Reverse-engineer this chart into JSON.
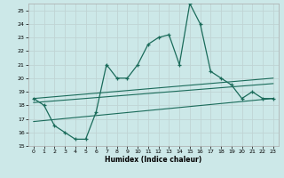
{
  "xlabel": "Humidex (Indice chaleur)",
  "xlim": [
    -0.5,
    23.5
  ],
  "ylim": [
    15,
    25.5
  ],
  "yticks": [
    15,
    16,
    17,
    18,
    19,
    20,
    21,
    22,
    23,
    24,
    25
  ],
  "xticks": [
    0,
    1,
    2,
    3,
    4,
    5,
    6,
    7,
    8,
    9,
    10,
    11,
    12,
    13,
    14,
    15,
    16,
    17,
    18,
    19,
    20,
    21,
    22,
    23
  ],
  "bg_color": "#cce8e8",
  "grid_color": "#b8d8d8",
  "line_color": "#1a6b5a",
  "main_line": {
    "x": [
      0,
      1,
      2,
      3,
      4,
      5,
      6,
      7,
      8,
      9,
      10,
      11,
      12,
      13,
      14,
      15,
      16,
      17,
      18,
      19,
      20,
      21,
      22,
      23
    ],
    "y": [
      18.5,
      18.0,
      16.5,
      16.0,
      15.5,
      15.5,
      17.5,
      21.0,
      20.0,
      20.0,
      21.0,
      22.5,
      23.0,
      23.2,
      21.0,
      25.5,
      24.0,
      20.5,
      20.0,
      19.5,
      18.5,
      19.0,
      18.5,
      18.5
    ]
  },
  "regression_lines": [
    {
      "x": [
        0,
        23
      ],
      "y": [
        18.5,
        20.0
      ]
    },
    {
      "x": [
        0,
        23
      ],
      "y": [
        18.2,
        19.6
      ]
    },
    {
      "x": [
        0,
        23
      ],
      "y": [
        16.8,
        18.5
      ]
    }
  ]
}
